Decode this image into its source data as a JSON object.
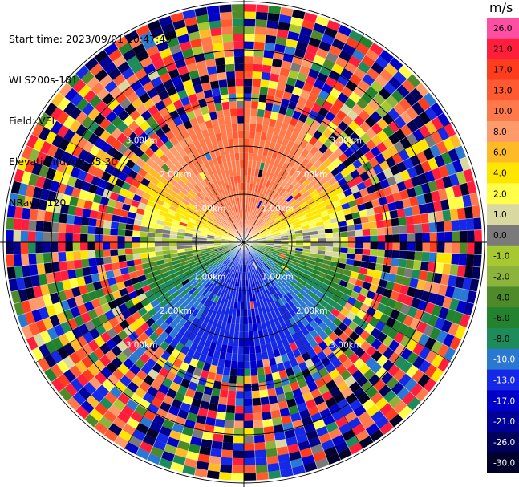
{
  "info": {
    "start_time": "Start time: 2023/09/01 10:47:49",
    "station": "WLS200s-181",
    "field": "Field: VEL",
    "elevation": "Elevation(deg): 35.30",
    "nrays": "NRays: 120"
  },
  "colorbar": {
    "unit": "m/s",
    "levels": [
      {
        "label": "26.0",
        "color": "#ff4fa3",
        "text": "#000000"
      },
      {
        "label": "21.0",
        "color": "#ff1f3c",
        "text": "#000000"
      },
      {
        "label": "17.0",
        "color": "#ff3c1e",
        "text": "#000000"
      },
      {
        "label": "13.0",
        "color": "#ff5a32",
        "text": "#000000"
      },
      {
        "label": "10.0",
        "color": "#ff7a4a",
        "text": "#000000"
      },
      {
        "label": "8.0",
        "color": "#ff9a6a",
        "text": "#000000"
      },
      {
        "label": "6.0",
        "color": "#ffba28",
        "text": "#000000"
      },
      {
        "label": "4.0",
        "color": "#ffe600",
        "text": "#000000"
      },
      {
        "label": "2.0",
        "color": "#ffff4a",
        "text": "#000000"
      },
      {
        "label": "1.0",
        "color": "#d8d8a0",
        "text": "#000000"
      },
      {
        "label": "0.0",
        "color": "#7a7a7a",
        "text": "#000000"
      },
      {
        "label": "-1.0",
        "color": "#a8c832",
        "text": "#000000"
      },
      {
        "label": "-2.0",
        "color": "#8cb43c",
        "text": "#000000"
      },
      {
        "label": "-4.0",
        "color": "#4e8a2a",
        "text": "#000000"
      },
      {
        "label": "-6.0",
        "color": "#23822d",
        "text": "#000000"
      },
      {
        "label": "-8.0",
        "color": "#1e8c5a",
        "text": "#000000"
      },
      {
        "label": "-10.0",
        "color": "#2a78d2",
        "text": "#ffffff"
      },
      {
        "label": "-13.0",
        "color": "#1428e6",
        "text": "#ffffff"
      },
      {
        "label": "-17.0",
        "color": "#0000c8",
        "text": "#ffffff"
      },
      {
        "label": "-21.0",
        "color": "#000096",
        "text": "#ffffff"
      },
      {
        "label": "-26.0",
        "color": "#00005a",
        "text": "#ffffff"
      },
      {
        "label": "-30.0",
        "color": "#000028",
        "text": "#ffffff"
      }
    ]
  },
  "chart_data": {
    "type": "ppi",
    "field": "VEL",
    "unit": "m/s",
    "nrays": 120,
    "range_rings": [
      {
        "range_km": 1.0,
        "label": "1.00km"
      },
      {
        "range_km": 2.0,
        "label": "2.00km"
      },
      {
        "range_km": 3.0,
        "label": "3.00km"
      }
    ],
    "max_range_km": 4.85,
    "gate_spacing_km": 0.15,
    "clean_range_km": [
      1.4,
      2.6
    ],
    "velocity_pattern": {
      "north": "positive 10 to 13 m/s",
      "east_west": "near 0 to 2 m/s",
      "south": "negative -8 to -13 m/s",
      "far_range": "noise"
    }
  }
}
